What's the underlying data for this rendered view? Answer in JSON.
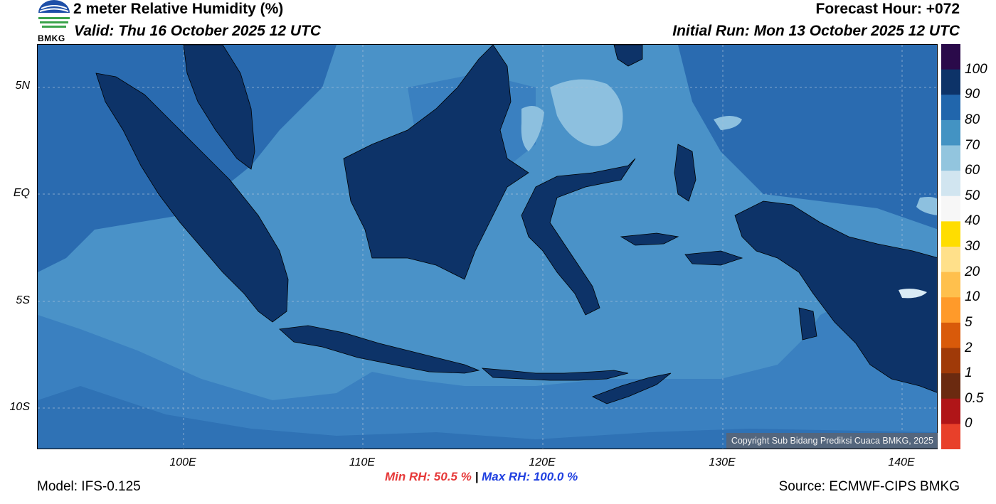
{
  "header": {
    "title": "2 meter Relative Humidity (%)",
    "valid": "Valid: Thu 16 October 2025 12 UTC",
    "forecast_hour": "Forecast Hour: +072",
    "initial_run": "Initial Run: Mon 13 October 2025 12 UTC",
    "logo_text": "BMKG"
  },
  "map": {
    "lat_labels": [
      "5N",
      "EQ",
      "5S",
      "10S"
    ],
    "lon_labels": [
      "100E",
      "110E",
      "120E",
      "130E",
      "140E"
    ],
    "copyright": "Copyright Sub Bidang Prediksi Cuaca BMKG, 2025"
  },
  "stats": {
    "min_rh": "Min RH:  50.5 %",
    "separator": "|",
    "max_rh": "Max RH: 100.0 %"
  },
  "footer": {
    "model": "Model: IFS-0.125",
    "source": "Source: ECMWF-CIPS BMKG"
  },
  "colorbar": {
    "labels": [
      "100",
      "90",
      "80",
      "70",
      "60",
      "50",
      "40",
      "30",
      "20",
      "10",
      "5",
      "2",
      "1",
      "0.5",
      "0"
    ],
    "colors": [
      "#2a0a4a",
      "#0d3368",
      "#2166ac",
      "#4393c3",
      "#92c5de",
      "#d1e5f0",
      "#f7f7f7",
      "#ffdd00",
      "#ffe08a",
      "#ffc04d",
      "#ff9a2a",
      "#d95a0a",
      "#a03a08",
      "#6b2a10",
      "#b01518",
      "#e8402a"
    ]
  },
  "colors": {
    "land_humid": "#0d3368",
    "ocean_humid": "#2166ac",
    "ocean_moderate": "#4393c3",
    "ocean_dry": "#92c5de",
    "min_text": "#e63939",
    "max_text": "#2040e0"
  }
}
